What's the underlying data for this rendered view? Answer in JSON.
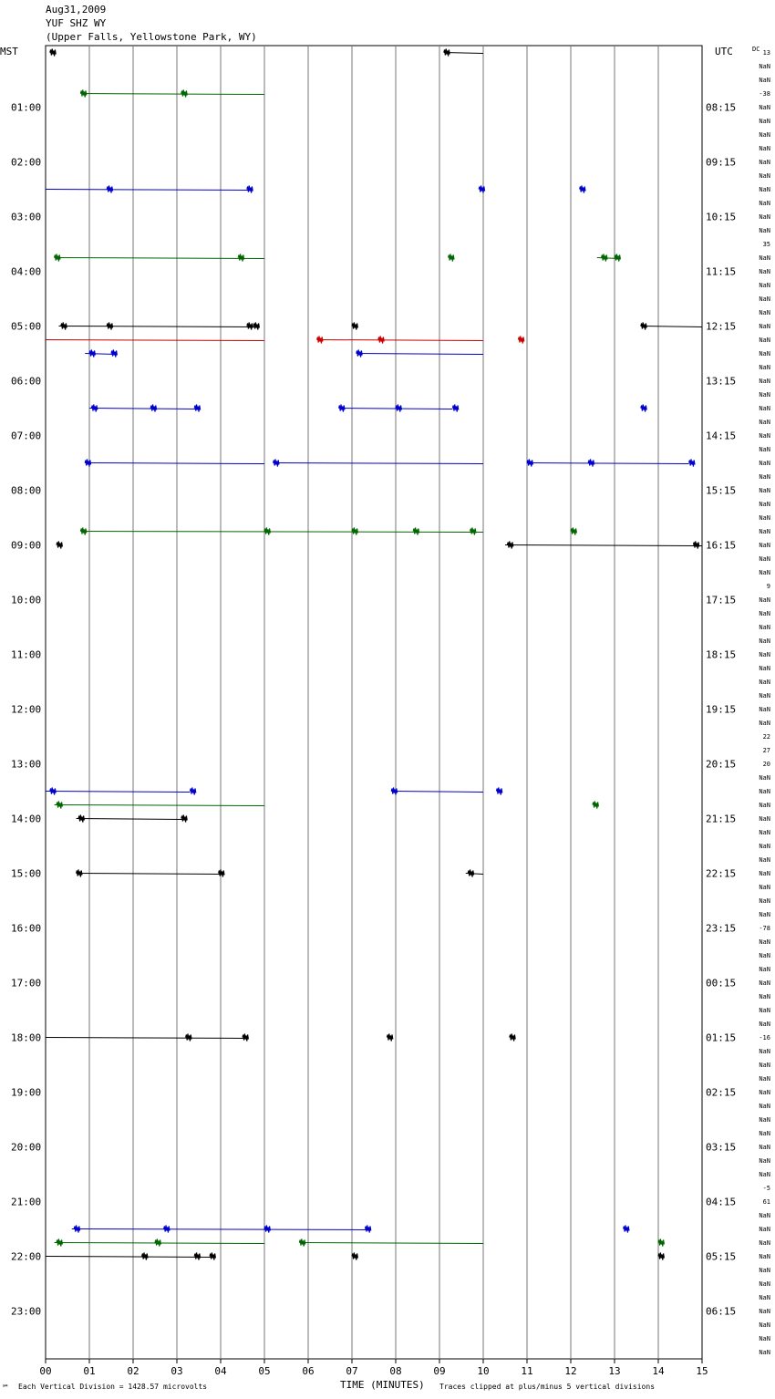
{
  "header": {
    "date": "Aug31,2009",
    "station": "YUF SHZ WY",
    "location": "(Upper Falls, Yellowstone Park, WY)"
  },
  "left_label": "MST",
  "right_label": "UTC",
  "dc_label": "DC",
  "footer": {
    "scale": "Each Vertical Division = 1428.57 microvolts",
    "xlabel": "TIME (MINUTES)",
    "clip": "Traces clipped at plus/minus 5 vertical divisions",
    "mark": "℠"
  },
  "chart_data": {
    "type": "line",
    "xlim": [
      0,
      15
    ],
    "x_ticks": [
      "00",
      "01",
      "02",
      "03",
      "04",
      "05",
      "06",
      "07",
      "08",
      "09",
      "10",
      "11",
      "12",
      "13",
      "14",
      "15"
    ],
    "rows_per_hour": 4,
    "row_count": 96,
    "mst_labels": [
      "01:00",
      "02:00",
      "03:00",
      "04:00",
      "05:00",
      "06:00",
      "07:00",
      "08:00",
      "09:00",
      "10:00",
      "11:00",
      "12:00",
      "13:00",
      "14:00",
      "15:00",
      "16:00",
      "17:00",
      "18:00",
      "19:00",
      "20:00",
      "21:00",
      "22:00",
      "23:00"
    ],
    "utc_labels": [
      "08:15",
      "09:15",
      "10:15",
      "11:15",
      "12:15",
      "13:15",
      "14:15",
      "15:15",
      "16:15",
      "17:15",
      "18:15",
      "19:15",
      "20:15",
      "21:15",
      "22:15",
      "23:15",
      "00:15",
      "01:15",
      "02:15",
      "03:15",
      "04:15",
      "05:15",
      "06:15"
    ],
    "dc_values": [
      "13",
      "NaN",
      "NaN",
      "-38",
      "NaN",
      "NaN",
      "NaN",
      "NaN",
      "NaN",
      "NaN",
      "NaN",
      "NaN",
      "NaN",
      "NaN",
      "35",
      "NaN",
      "NaN",
      "NaN",
      "NaN",
      "NaN",
      "NaN",
      "NaN",
      "NaN",
      "NaN",
      "NaN",
      "NaN",
      "NaN",
      "NaN",
      "NaN",
      "NaN",
      "NaN",
      "NaN",
      "NaN",
      "NaN",
      "NaN",
      "NaN",
      "NaN",
      "NaN",
      "NaN",
      "9",
      "NaN",
      "NaN",
      "NaN",
      "NaN",
      "NaN",
      "NaN",
      "NaN",
      "NaN",
      "NaN",
      "NaN",
      "22",
      "27",
      "20",
      "NaN",
      "NaN",
      "NaN",
      "NaN",
      "NaN",
      "NaN",
      "NaN",
      "NaN",
      "NaN",
      "NaN",
      "NaN",
      "-78",
      "NaN",
      "NaN",
      "NaN",
      "NaN",
      "NaN",
      "NaN",
      "NaN",
      "-16",
      "NaN",
      "NaN",
      "NaN",
      "NaN",
      "NaN",
      "NaN",
      "NaN",
      "NaN",
      "NaN",
      "NaN",
      "-5",
      "61",
      "NaN",
      "NaN",
      "NaN",
      "NaN",
      "NaN",
      "NaN",
      "NaN",
      "NaN",
      "NaN",
      "NaN",
      "NaN"
    ],
    "row_colors": [
      "#000000",
      "#cc0000",
      "#0000cc",
      "#006600"
    ],
    "traces": [
      {
        "row": 0,
        "segments": [
          [
            0.1,
            0.2
          ],
          [
            9.1,
            10
          ]
        ],
        "bursts": [
          0.1,
          9.1
        ]
      },
      {
        "row": 3,
        "segments": [
          [
            0.8,
            5
          ]
        ],
        "bursts": [
          0.8,
          3.1
        ]
      },
      {
        "row": 10,
        "segments": [
          [
            0,
            4.7
          ]
        ],
        "bursts": [
          1.4,
          4.6
        ]
      },
      {
        "row": 10,
        "segments": [],
        "bursts": [
          9.9,
          12.2
        ]
      },
      {
        "row": 15,
        "segments": [
          [
            0.2,
            5
          ]
        ],
        "bursts": [
          0.2,
          4.4
        ]
      },
      {
        "row": 15,
        "segments": [
          [
            12.6,
            13.1
          ]
        ],
        "bursts": [
          9.2,
          12.7,
          13.0
        ]
      },
      {
        "row": 20,
        "segments": [
          [
            0.3,
            4.8
          ],
          [
            13.6,
            15
          ]
        ],
        "bursts": [
          0.35,
          1.4,
          4.6,
          4.75,
          7.0,
          13.6
        ]
      },
      {
        "row": 21,
        "segments": [
          [
            0,
            5
          ],
          [
            6.2,
            10
          ]
        ],
        "bursts": [
          6.2,
          7.6,
          10.8
        ]
      },
      {
        "row": 22,
        "segments": [
          [
            0.9,
            1.6
          ],
          [
            7.1,
            10
          ]
        ],
        "bursts": [
          1.0,
          1.5,
          7.1
        ]
      },
      {
        "row": 26,
        "segments": [
          [
            1.0,
            3.5
          ],
          [
            6.7,
            9.3
          ]
        ],
        "bursts": [
          1.05,
          2.4,
          3.4,
          6.7,
          8.0,
          9.3,
          13.6
        ]
      },
      {
        "row": 30,
        "segments": [
          [
            0.9,
            5
          ],
          [
            5.2,
            10
          ],
          [
            11.0,
            14.7
          ]
        ],
        "bursts": [
          0.9,
          5.2,
          11.0,
          12.4,
          14.7
        ]
      },
      {
        "row": 35,
        "segments": [
          [
            0.8,
            10
          ]
        ],
        "bursts": [
          0.8,
          5.0,
          7.0,
          8.4,
          9.7,
          12.0
        ]
      },
      {
        "row": 36,
        "segments": [
          [
            10.5,
            15
          ]
        ],
        "bursts": [
          0.25,
          10.55,
          14.8
        ]
      },
      {
        "row": 54,
        "segments": [
          [
            0,
            3.3
          ],
          [
            7.9,
            10
          ]
        ],
        "bursts": [
          0.1,
          3.3,
          7.9,
          10.3
        ]
      },
      {
        "row": 55,
        "segments": [
          [
            0.2,
            5
          ]
        ],
        "bursts": [
          0.25,
          12.5
        ]
      },
      {
        "row": 56,
        "segments": [
          [
            0.7,
            3.2
          ]
        ],
        "bursts": [
          0.75,
          3.1
        ]
      },
      {
        "row": 60,
        "segments": [
          [
            0.7,
            4.0
          ],
          [
            9.6,
            10
          ]
        ],
        "bursts": [
          0.7,
          3.95,
          9.65
        ]
      },
      {
        "row": 72,
        "segments": [
          [
            0,
            4.6
          ]
        ],
        "bursts": [
          3.2,
          4.5,
          7.8,
          10.6
        ]
      },
      {
        "row": 86,
        "segments": [
          [
            0.6,
            7.4
          ]
        ],
        "bursts": [
          0.65,
          2.7,
          5.0,
          7.3,
          13.2
        ]
      },
      {
        "row": 87,
        "segments": [
          [
            0.2,
            5
          ],
          [
            5.8,
            10
          ]
        ],
        "bursts": [
          0.25,
          2.5,
          5.8,
          14.0
        ]
      },
      {
        "row": 88,
        "segments": [
          [
            0,
            3.8
          ]
        ],
        "bursts": [
          2.2,
          3.4,
          3.75,
          7.0,
          14.0
        ]
      }
    ]
  }
}
